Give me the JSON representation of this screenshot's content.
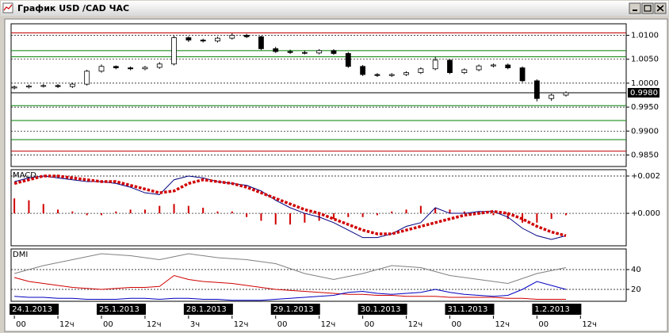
{
  "window": {
    "title": "График USD /CAD ЧАС"
  },
  "chart_data": [
    {
      "type": "candlestick",
      "x": [
        0,
        4,
        8,
        12,
        16,
        20,
        24,
        28,
        32,
        36,
        40,
        44,
        48,
        52,
        56,
        60,
        64,
        68,
        72,
        76,
        80,
        84,
        88,
        92,
        96,
        100,
        104,
        108,
        112,
        116,
        120,
        124,
        128,
        132,
        136,
        140,
        144,
        148,
        152
      ],
      "open": [
        0.999,
        0.9992,
        0.9994,
        0.9995,
        0.9993,
        0.9998,
        1.0025,
        1.0035,
        1.0032,
        1.003,
        1.0033,
        1.004,
        1.0095,
        1.009,
        1.0088,
        1.0094,
        1.01,
        1.0097,
        1.0072,
        1.0066,
        1.0064,
        1.0063,
        1.0068,
        1.0062,
        1.0035,
        1.0018,
        1.0016,
        1.0018,
        1.0022,
        1.003,
        1.0048,
        1.0022,
        1.0028,
        1.0036,
        1.0038,
        1.0032,
        1.0005,
        0.9968,
        0.9975
      ],
      "close": [
        0.9992,
        0.9994,
        0.9995,
        0.9993,
        0.9998,
        1.0025,
        1.0035,
        1.0032,
        1.003,
        1.0033,
        1.004,
        1.0095,
        1.009,
        1.0088,
        1.0094,
        1.01,
        1.0097,
        1.0072,
        1.0066,
        1.0064,
        1.0063,
        1.0068,
        1.0062,
        1.0035,
        1.0018,
        1.0016,
        1.0018,
        1.0022,
        1.003,
        1.0048,
        1.0022,
        1.0028,
        1.0036,
        1.0038,
        1.0032,
        1.0005,
        0.9968,
        0.9975,
        0.998
      ],
      "high": [
        0.9995,
        0.9997,
        0.9998,
        0.9998,
        1.0001,
        1.0028,
        1.0039,
        1.0037,
        1.0035,
        1.0036,
        1.0044,
        1.0099,
        1.0098,
        1.0093,
        1.0097,
        1.0104,
        1.0103,
        1.0099,
        1.0076,
        1.007,
        1.0068,
        1.0071,
        1.0071,
        1.0065,
        1.0038,
        1.0021,
        1.0021,
        1.0025,
        1.0033,
        1.0055,
        1.005,
        1.0031,
        1.0039,
        1.0041,
        1.0041,
        1.0035,
        1.0008,
        0.9978,
        0.9983
      ],
      "low": [
        0.9987,
        0.9989,
        0.9991,
        0.999,
        0.999,
        0.9995,
        1.0022,
        1.0029,
        1.0027,
        1.0027,
        1.003,
        1.0037,
        1.0086,
        1.0085,
        1.0085,
        1.0091,
        1.0094,
        1.0069,
        1.0063,
        1.0061,
        1.006,
        1.006,
        1.0059,
        1.0032,
        1.0015,
        1.0013,
        1.0013,
        1.0015,
        1.0019,
        1.0027,
        1.0019,
        1.0019,
        1.0025,
        1.0033,
        1.0029,
        1.0002,
        0.9962,
        0.9963,
        0.9972
      ],
      "xlim": [
        -0.9,
        168.6
      ],
      "ylim": [
        0.9826,
        1.0124
      ],
      "yticks": [
        {
          "value": 1.01,
          "label": "1.0100"
        },
        {
          "value": 1.005,
          "label": "1.0050"
        },
        {
          "value": 1.0,
          "label": "1.0000"
        },
        {
          "value": 0.995,
          "label": "0.9950"
        },
        {
          "value": 0.99,
          "label": "0.9900"
        },
        {
          "value": 0.985,
          "label": "0.9850"
        }
      ],
      "grid": true,
      "last_price": {
        "value": 0.998,
        "label": "0.9980"
      },
      "levels": [
        {
          "value": 1.0105,
          "color": "#c00000"
        },
        {
          "value": 1.0068,
          "color": "#008000"
        },
        {
          "value": 1.0055,
          "color": "#008000"
        },
        {
          "value": 0.9953,
          "color": "#008000"
        },
        {
          "value": 0.9922,
          "color": "#008000"
        },
        {
          "value": 0.9882,
          "color": "#008000"
        },
        {
          "value": 0.9858,
          "color": "#c00000"
        }
      ]
    },
    {
      "type": "macd",
      "title": "MACD",
      "x": [
        0,
        4,
        8,
        12,
        16,
        20,
        24,
        28,
        32,
        36,
        40,
        44,
        48,
        52,
        56,
        60,
        64,
        68,
        72,
        76,
        80,
        84,
        88,
        92,
        96,
        100,
        104,
        108,
        112,
        116,
        120,
        124,
        128,
        132,
        136,
        140,
        144,
        148,
        152
      ],
      "xlim": [
        -0.9,
        168.6
      ],
      "ylim": [
        -0.00174,
        0.00234
      ],
      "yticks": [
        {
          "value": 0.002,
          "label": "+0.002"
        },
        {
          "value": 0,
          "label": "+0.000"
        }
      ],
      "grid": true,
      "series": [
        {
          "kind": "histogram",
          "color": "#d00000",
          "values": [
            0.0008,
            0.0007,
            0.0005,
            0.0002,
            0.0001,
            -0.0001,
            -0.0001,
            0.0001,
            0.0002,
            0.0002,
            0.0004,
            0.0005,
            0.0004,
            0.0003,
            0.0001,
            0.0001,
            -0.0002,
            -0.0004,
            -0.0006,
            -0.0006,
            -0.0005,
            -0.0004,
            -0.0003,
            -0.0002,
            -0.0002,
            -0.0001,
            0.0001,
            0.0002,
            0.0004,
            0.0003,
            0.0002,
            0.0001,
            0.0001,
            -0.0001,
            -0.0003,
            -0.0005,
            -0.0005,
            -0.0003,
            -0.0001
          ]
        },
        {
          "kind": "line",
          "color": "#000080",
          "values": [
            0.0017,
            0.0019,
            0.002,
            0.0019,
            0.0018,
            0.0017,
            0.0017,
            0.0016,
            0.0014,
            0.0011,
            0.001,
            0.0018,
            0.002,
            0.0019,
            0.0017,
            0.0016,
            0.0015,
            0.0012,
            0.0007,
            0.0003,
            0.0,
            -0.0002,
            -0.0005,
            -0.0009,
            -0.0013,
            -0.0013,
            -0.0011,
            -0.0007,
            -0.0005,
            0.0003,
            0.0,
            0.0,
            0.0001,
            0.0001,
            -0.0002,
            -0.0008,
            -0.0012,
            -0.0014,
            -0.0012
          ]
        },
        {
          "kind": "dotted",
          "color": "#d00000",
          "values": [
            0.0016,
            0.0018,
            0.002,
            0.002,
            0.0019,
            0.0018,
            0.0017,
            0.0017,
            0.0015,
            0.0013,
            0.0011,
            0.0012,
            0.0016,
            0.0018,
            0.0017,
            0.0016,
            0.0014,
            0.0011,
            0.0008,
            0.0005,
            0.0002,
            0.0,
            -0.0003,
            -0.0006,
            -0.0009,
            -0.0011,
            -0.0011,
            -0.0009,
            -0.0007,
            -0.0005,
            -0.0003,
            -0.0001,
            0.0,
            0.0001,
            0.0,
            -0.0003,
            -0.0007,
            -0.001,
            -0.0012
          ]
        }
      ]
    },
    {
      "type": "dmi",
      "title": "DMI",
      "x": [
        0,
        4,
        8,
        12,
        16,
        20,
        24,
        28,
        32,
        36,
        40,
        44,
        48,
        52,
        56,
        60,
        64,
        68,
        72,
        76,
        80,
        84,
        88,
        92,
        96,
        100,
        104,
        108,
        112,
        116,
        120,
        124,
        128,
        132,
        136,
        140,
        144,
        148,
        152
      ],
      "xlim": [
        -0.9,
        168.6
      ],
      "ylim": [
        8,
        60.8
      ],
      "yticks": [
        40,
        20
      ],
      "grid": true,
      "series": [
        {
          "kind": "line",
          "color": "#808080",
          "values": [
            36,
            40,
            44,
            47,
            50,
            53,
            56,
            55,
            54,
            52,
            50,
            53,
            56,
            54,
            52,
            51,
            50,
            48,
            46,
            41,
            36,
            33,
            30,
            33,
            36,
            40,
            44,
            43,
            42,
            38,
            34,
            32,
            30,
            28,
            26,
            31,
            36,
            39,
            42
          ]
        },
        {
          "kind": "line",
          "color": "#d00000",
          "values": [
            32,
            28,
            26,
            24,
            22,
            21,
            20,
            21,
            22,
            22,
            23,
            34,
            30,
            28,
            27,
            26,
            24,
            22,
            20,
            19,
            18,
            17,
            16,
            15,
            15,
            14,
            14,
            13,
            13,
            13,
            12,
            12,
            12,
            12,
            11,
            11,
            10,
            10,
            10
          ]
        },
        {
          "kind": "line",
          "color": "#0000c0",
          "values": [
            13,
            12,
            12,
            11,
            11,
            10,
            10,
            10,
            11,
            11,
            10,
            11,
            11,
            10,
            10,
            9,
            9,
            9,
            10,
            11,
            12,
            13,
            14,
            17,
            18,
            16,
            15,
            16,
            17,
            20,
            17,
            15,
            14,
            13,
            14,
            20,
            28,
            24,
            20
          ]
        }
      ],
      "date_labels": [
        {
          "value": 0,
          "label": "24.1.2013"
        },
        {
          "value": 24,
          "label": "25.1.2013"
        },
        {
          "value": 48,
          "label": "28.1.2013"
        },
        {
          "value": 72,
          "label": "29.1.2013"
        },
        {
          "value": 96,
          "label": "30.1.2013"
        },
        {
          "value": 120,
          "label": "31.1.2013"
        },
        {
          "value": 144,
          "label": "1.2.2013"
        }
      ],
      "xticks": [
        {
          "value": 0,
          "label": "00"
        },
        {
          "value": 12,
          "label": "12ч"
        },
        {
          "value": 24,
          "label": "00"
        },
        {
          "value": 36,
          "label": "12ч"
        },
        {
          "value": 48,
          "label": "3ч"
        },
        {
          "value": 60,
          "label": "12ч"
        },
        {
          "value": 72,
          "label": "00"
        },
        {
          "value": 84,
          "label": "12ч"
        },
        {
          "value": 96,
          "label": "00"
        },
        {
          "value": 108,
          "label": "12ч"
        },
        {
          "value": 120,
          "label": "00"
        },
        {
          "value": 132,
          "label": "12ч"
        },
        {
          "value": 144,
          "label": "00"
        },
        {
          "value": 156,
          "label": "12ч"
        }
      ]
    }
  ]
}
